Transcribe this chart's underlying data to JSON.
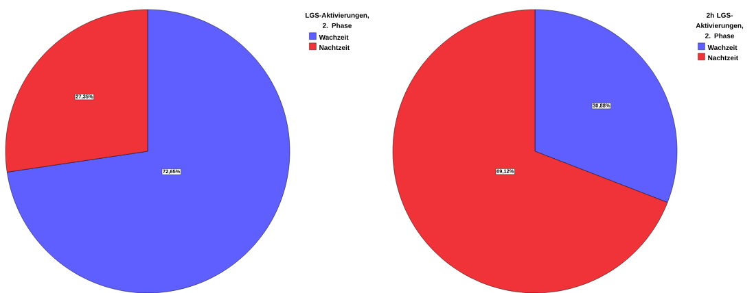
{
  "chart_data": [
    {
      "type": "pie",
      "legend_title": "LGS-Aktivierungen, 2. Phase",
      "categories": [
        "Wachzeit",
        "Nachtzeit"
      ],
      "values": [
        72.65,
        27.35
      ],
      "colors": [
        "#5f5fff",
        "#ef3338"
      ],
      "value_labels": [
        "72,65%",
        "27,35%"
      ],
      "legend": "top right"
    },
    {
      "type": "pie",
      "legend_title": "2h LGS-Aktivierungen, 2. Phase",
      "categories": [
        "Wachzeit",
        "Nachtzeit"
      ],
      "values": [
        30.88,
        69.12
      ],
      "colors": [
        "#5f5fff",
        "#ef3338"
      ],
      "value_labels": [
        "30,88%",
        "69,12%"
      ],
      "legend": "top right"
    }
  ]
}
